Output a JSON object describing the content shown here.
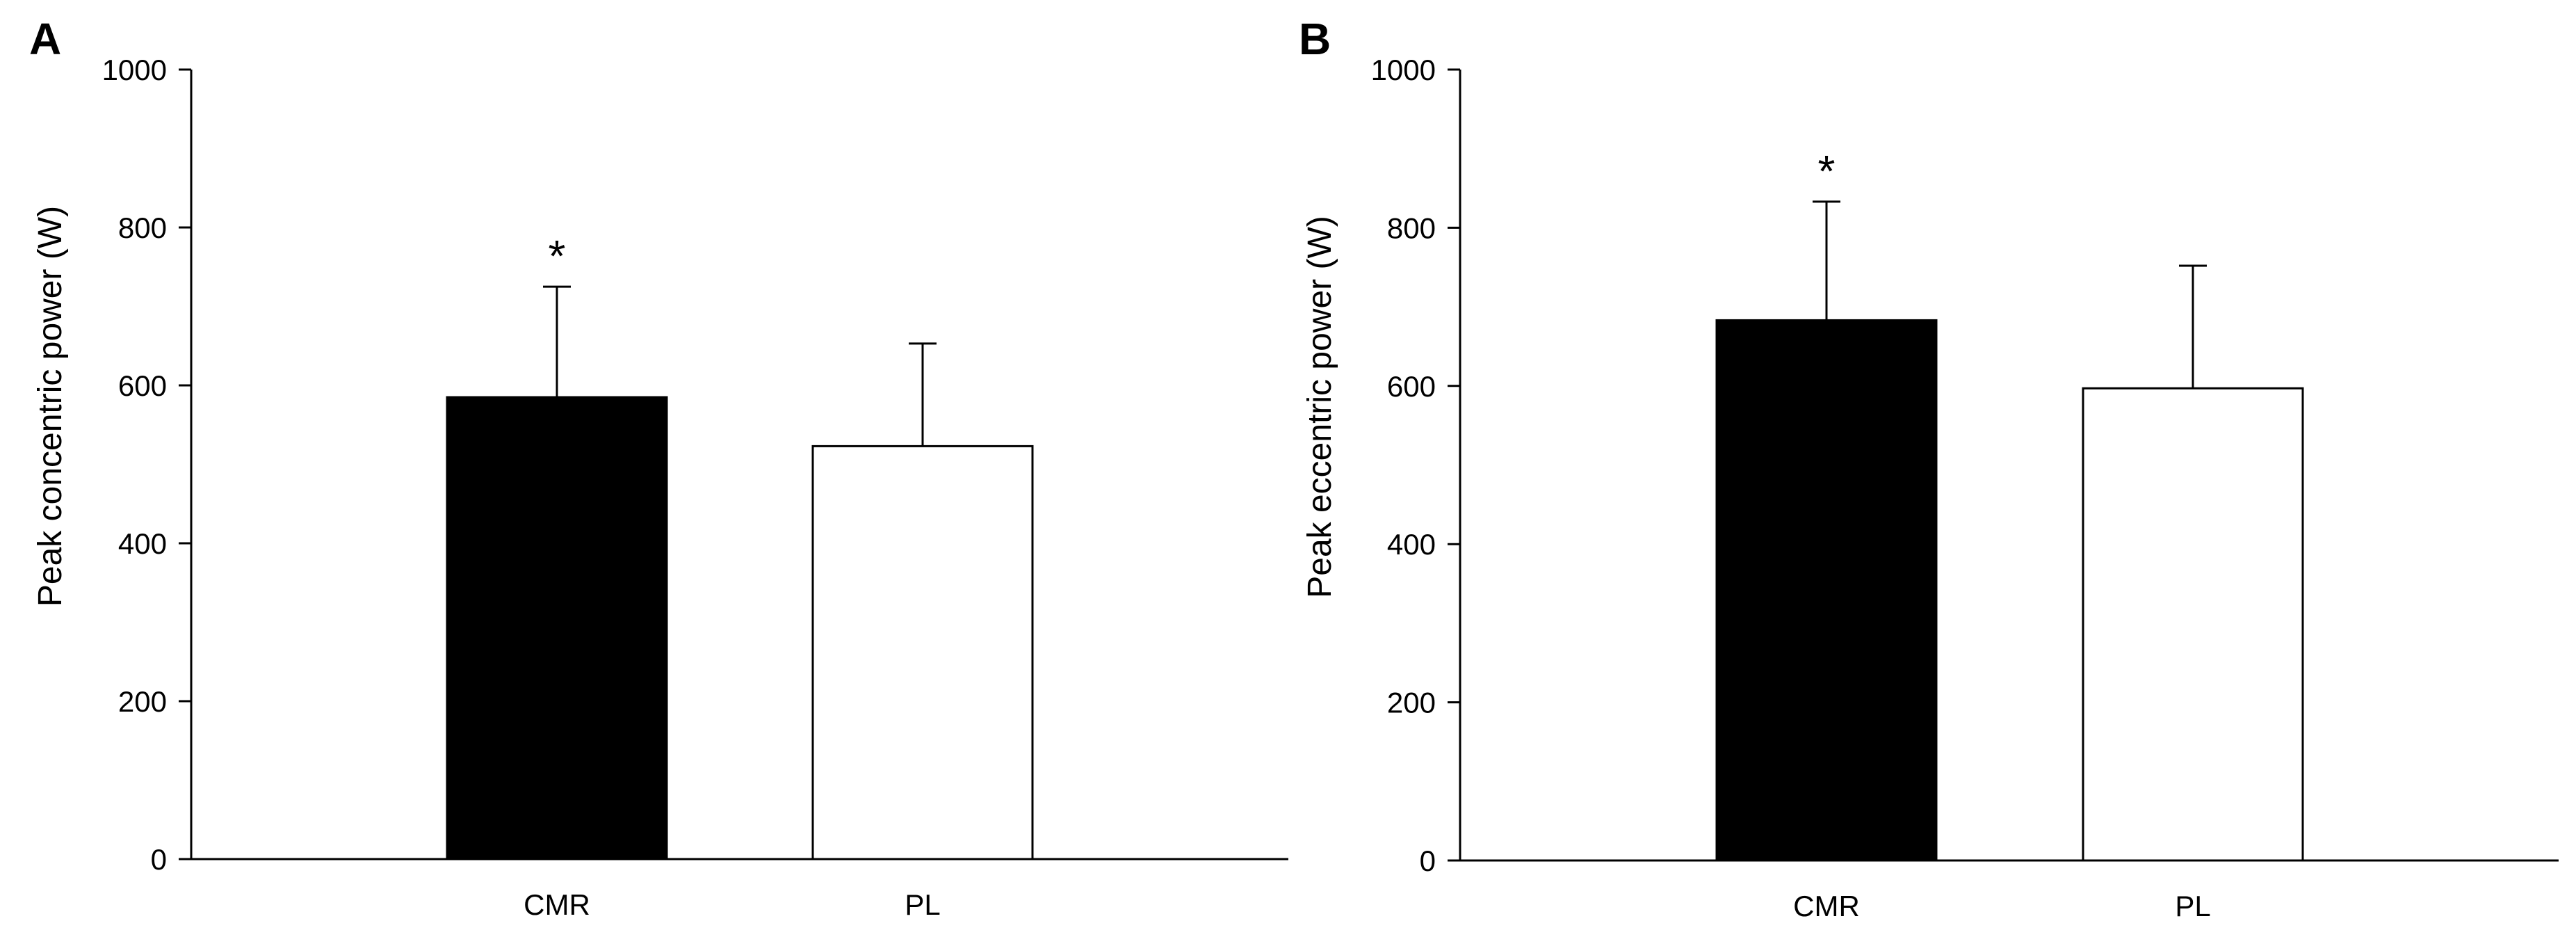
{
  "chart_data": [
    {
      "panel_label": "A",
      "type": "bar",
      "categories": [
        "CMR",
        "PL"
      ],
      "values": [
        585,
        523
      ],
      "errors": [
        140,
        130
      ],
      "bar_colors": [
        "#000000",
        "#ffffff"
      ],
      "significance": [
        "*",
        ""
      ],
      "ylabel": "Peak concentric power  (W)",
      "xlabel": "",
      "ylim": [
        0,
        1000
      ],
      "yticks": [
        0,
        200,
        400,
        600,
        800,
        1000
      ],
      "grid": false
    },
    {
      "panel_label": "B",
      "type": "bar",
      "categories": [
        "CMR",
        "PL"
      ],
      "values": [
        683,
        597
      ],
      "errors": [
        150,
        155
      ],
      "bar_colors": [
        "#000000",
        "#ffffff"
      ],
      "significance": [
        "*",
        ""
      ],
      "ylabel": "Peak eccentric power  (W)",
      "xlabel": "",
      "ylim": [
        0,
        1000
      ],
      "yticks": [
        0,
        200,
        400,
        600,
        800,
        1000
      ],
      "grid": false
    }
  ]
}
